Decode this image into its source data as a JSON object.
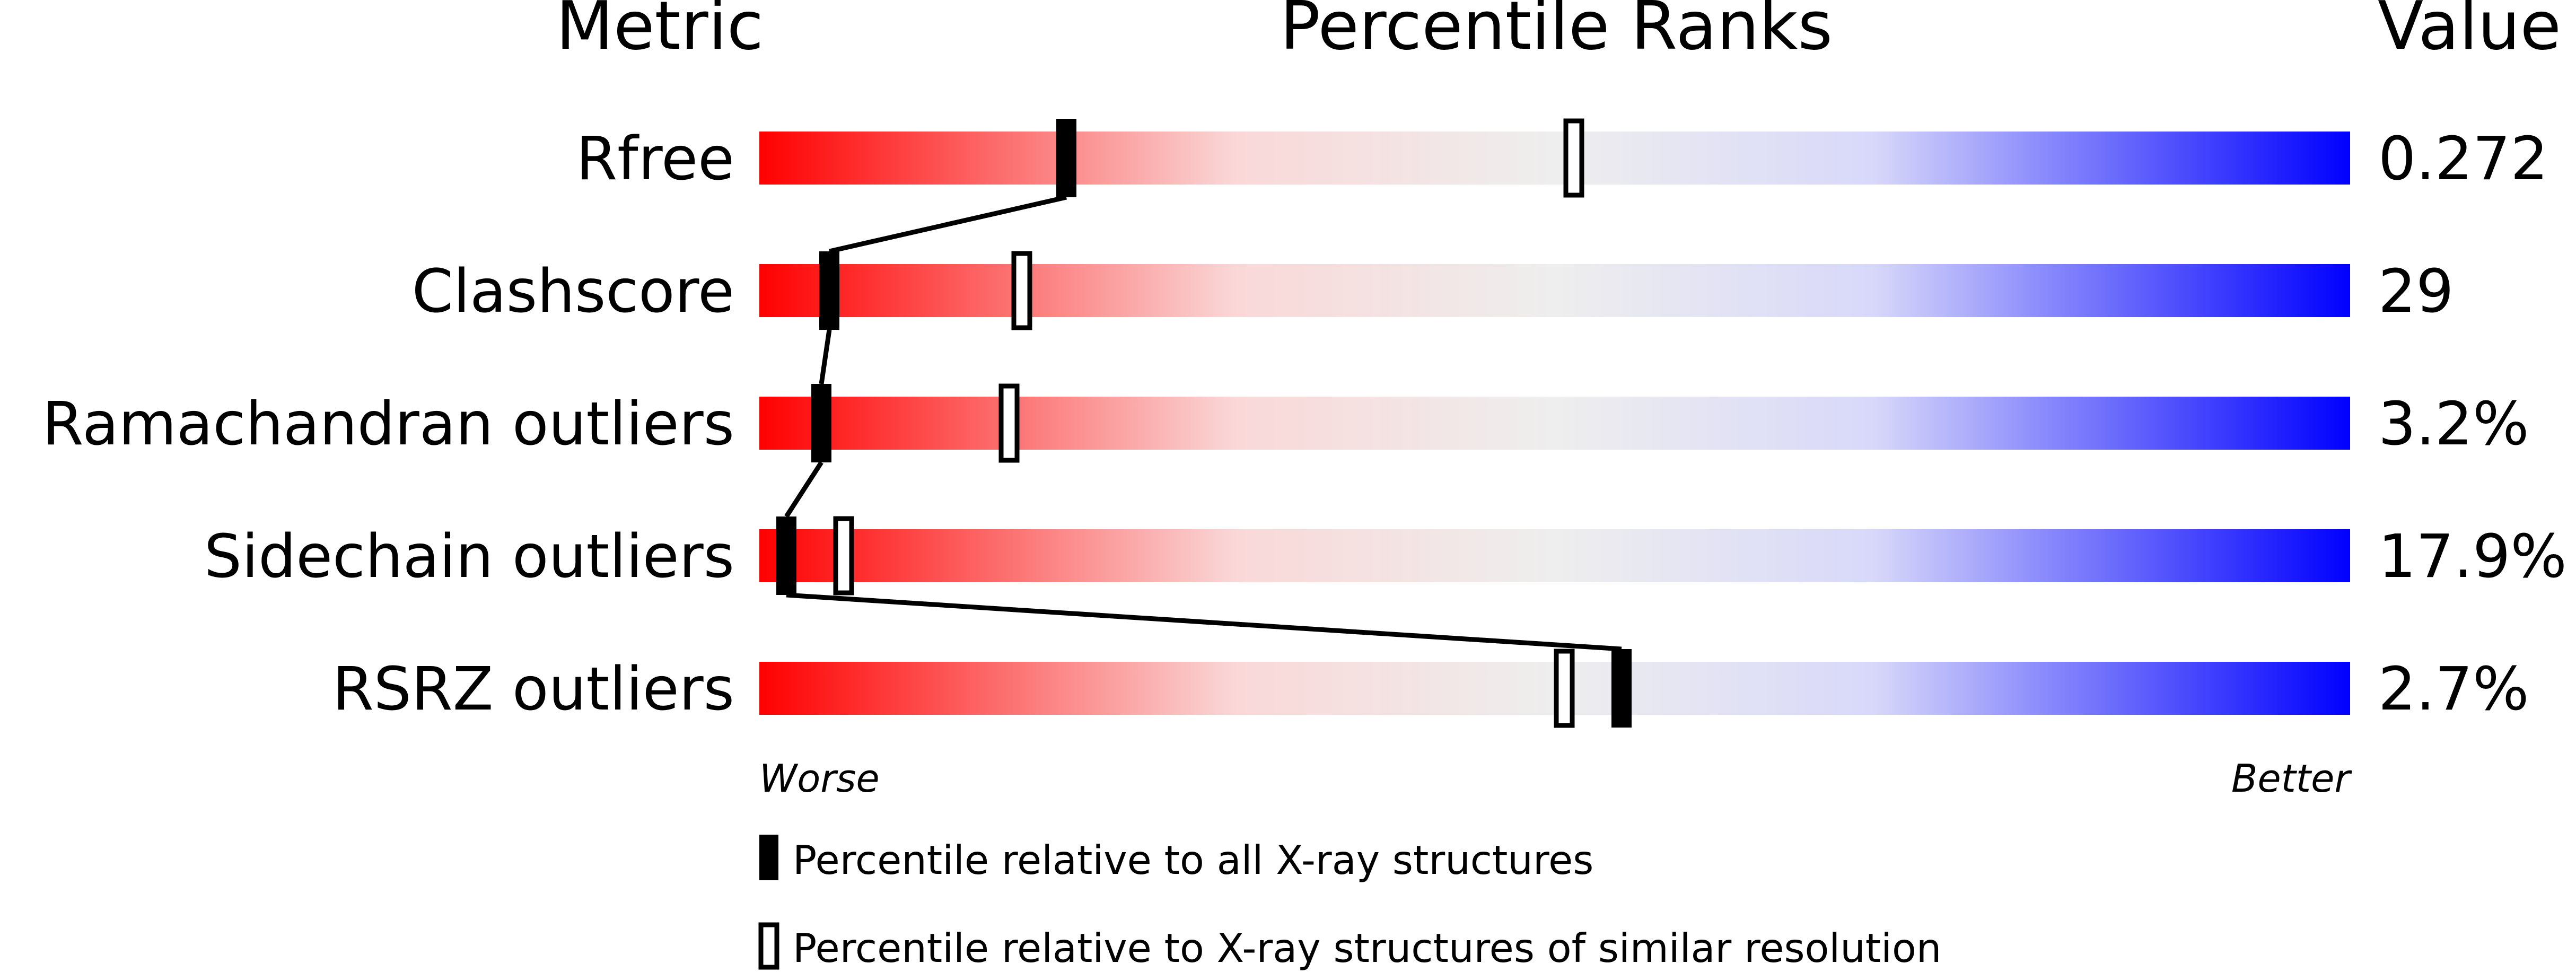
{
  "chart_data": {
    "type": "bar",
    "title": "Percentile Ranks",
    "metric_header": "Metric",
    "value_header": "Value",
    "scale": {
      "min": 0,
      "max": 100,
      "left_label": "Worse",
      "right_label": "Better"
    },
    "colors": {
      "worse": "#ff0000",
      "middle": "#eeeeee",
      "better": "#0000ff",
      "marker": "#000000"
    },
    "rows": [
      {
        "metric": "Rfree",
        "value": "0.272",
        "percentile_all": 19.3,
        "percentile_similar": 51.2
      },
      {
        "metric": "Clashscore",
        "value": "29",
        "percentile_all": 4.4,
        "percentile_similar": 16.5
      },
      {
        "metric": "Ramachandran outliers",
        "value": "3.2%",
        "percentile_all": 3.9,
        "percentile_similar": 15.7
      },
      {
        "metric": "Sidechain outliers",
        "value": "17.9%",
        "percentile_all": 1.7,
        "percentile_similar": 5.3
      },
      {
        "metric": "RSRZ outliers",
        "value": "2.7%",
        "percentile_all": 54.2,
        "percentile_similar": 50.6
      }
    ],
    "legend": [
      {
        "marker": "filled",
        "label": "Percentile relative to all X-ray structures"
      },
      {
        "marker": "open",
        "label": "Percentile relative to X-ray structures of similar resolution"
      }
    ]
  }
}
